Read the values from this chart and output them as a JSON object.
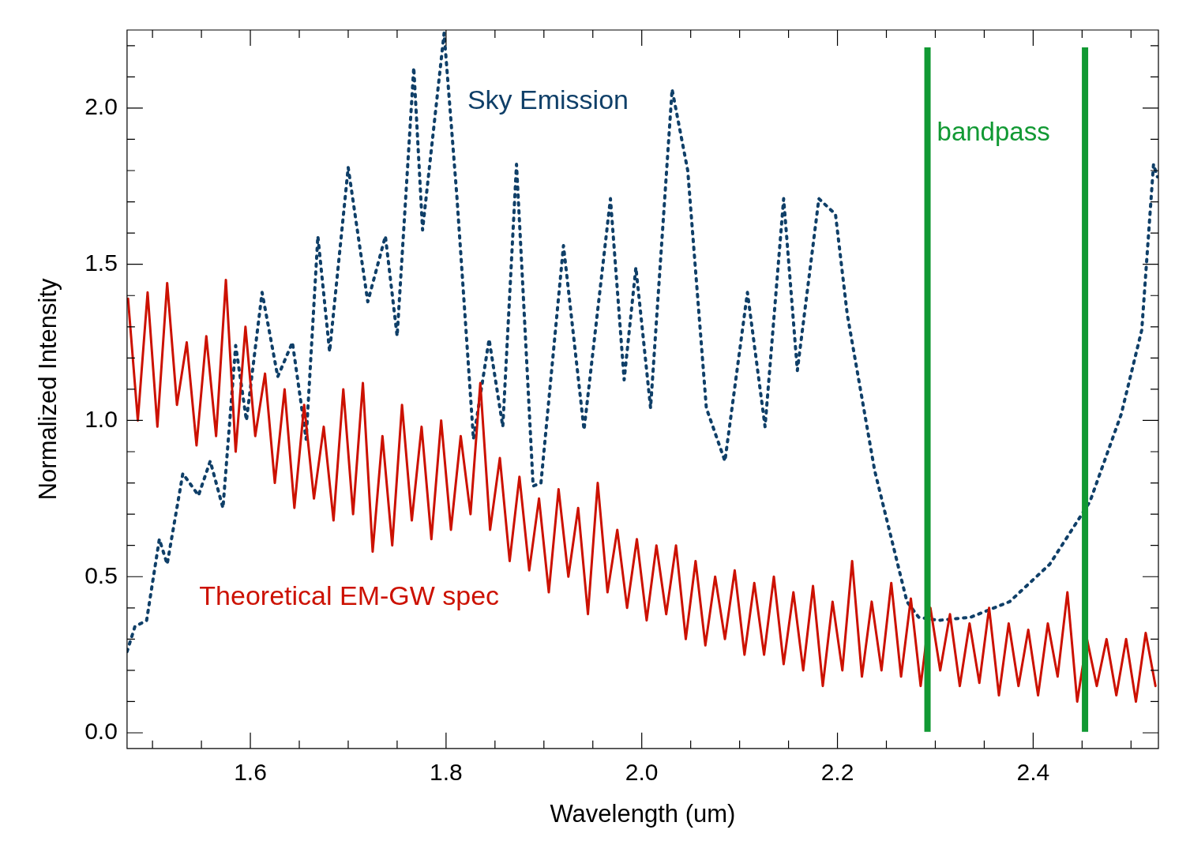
{
  "chart_data": {
    "type": "line",
    "xlabel": "Wavelength (um)",
    "ylabel": "Normalized Intensity",
    "xlim": [
      1.474,
      2.528
    ],
    "ylim": [
      -0.05,
      2.25
    ],
    "xticks": [
      {
        "value": 1.5,
        "label": null
      },
      {
        "value": 1.55,
        "label": null
      },
      1.6,
      {
        "value": 1.65,
        "label": null
      },
      {
        "value": 1.7,
        "label": null
      },
      {
        "value": 1.75,
        "label": null
      },
      1.8,
      {
        "value": 1.85,
        "label": null
      },
      {
        "value": 1.9,
        "label": null
      },
      {
        "value": 1.95,
        "label": null
      },
      {
        "value": 2.0,
        "label": "2.0"
      },
      {
        "value": 2.05,
        "label": null
      },
      {
        "value": 2.1,
        "label": null
      },
      {
        "value": 2.15,
        "label": null
      },
      2.2,
      {
        "value": 2.25,
        "label": null
      },
      {
        "value": 2.3,
        "label": null
      },
      {
        "value": 2.35,
        "label": null
      },
      2.4,
      {
        "value": 2.45,
        "label": null
      },
      {
        "value": 2.5,
        "label": null
      }
    ],
    "yticks": [
      {
        "value": 0,
        "label": "0.0"
      },
      {
        "value": 0.1,
        "label": null
      },
      {
        "value": 0.2,
        "label": null
      },
      {
        "value": 0.3,
        "label": null
      },
      {
        "value": 0.4,
        "label": null
      },
      0.5,
      {
        "value": 0.6,
        "label": null
      },
      {
        "value": 0.7,
        "label": null
      },
      {
        "value": 0.8,
        "label": null
      },
      {
        "value": 0.9,
        "label": null
      },
      {
        "value": 1,
        "label": "1.0"
      },
      {
        "value": 1.1,
        "label": null
      },
      {
        "value": 1.2,
        "label": null
      },
      {
        "value": 1.3,
        "label": null
      },
      {
        "value": 1.4,
        "label": null
      },
      1.5,
      {
        "value": 1.6,
        "label": null
      },
      {
        "value": 1.7,
        "label": null
      },
      {
        "value": 1.8,
        "label": null
      },
      {
        "value": 1.9,
        "label": null
      },
      {
        "value": 2,
        "label": "2.0"
      },
      {
        "value": 2.1,
        "label": null
      },
      {
        "value": 2.2,
        "label": null
      }
    ],
    "grid": false,
    "legend": false,
    "marker": "none",
    "series": [
      {
        "name": "Sky Emission",
        "color": "#0f3f68",
        "line_style": "dotted",
        "x": [
          1.474,
          1.482,
          1.494,
          1.507,
          1.515,
          1.531,
          1.547,
          1.559,
          1.572,
          1.585,
          1.596,
          1.612,
          1.628,
          1.643,
          1.657,
          1.669,
          1.681,
          1.7,
          1.72,
          1.738,
          1.75,
          1.767,
          1.776,
          1.798,
          1.811,
          1.828,
          1.844,
          1.858,
          1.872,
          1.889,
          1.897,
          1.92,
          1.941,
          1.968,
          1.982,
          1.994,
          2.009,
          2.031,
          2.047,
          2.066,
          2.085,
          2.108,
          2.126,
          2.145,
          2.159,
          2.181,
          2.198,
          2.21,
          2.238,
          2.271,
          2.283,
          2.303,
          2.336,
          2.376,
          2.417,
          2.458,
          2.49,
          2.511,
          2.523,
          2.527
        ],
        "values": [
          0.26,
          0.34,
          0.36,
          0.62,
          0.54,
          0.83,
          0.76,
          0.87,
          0.72,
          1.24,
          1.0,
          1.41,
          1.14,
          1.25,
          0.94,
          1.59,
          1.22,
          1.81,
          1.38,
          1.59,
          1.27,
          2.13,
          1.61,
          2.24,
          1.72,
          0.94,
          1.26,
          0.98,
          1.82,
          0.79,
          0.8,
          1.56,
          0.97,
          1.71,
          1.13,
          1.49,
          1.04,
          2.06,
          1.8,
          1.04,
          0.87,
          1.41,
          0.98,
          1.71,
          1.16,
          1.71,
          1.66,
          1.34,
          0.84,
          0.42,
          0.37,
          0.36,
          0.37,
          0.42,
          0.54,
          0.74,
          1.02,
          1.29,
          1.82,
          1.78
        ]
      },
      {
        "name": "Theoretical EM-GW spec",
        "color": "#cc1100",
        "line_style": "solid",
        "x": [
          1.475,
          1.485,
          1.495,
          1.505,
          1.515,
          1.525,
          1.535,
          1.545,
          1.555,
          1.565,
          1.575,
          1.585,
          1.595,
          1.605,
          1.615,
          1.625,
          1.635,
          1.645,
          1.655,
          1.665,
          1.675,
          1.685,
          1.695,
          1.705,
          1.715,
          1.725,
          1.735,
          1.745,
          1.755,
          1.765,
          1.775,
          1.785,
          1.795,
          1.805,
          1.815,
          1.825,
          1.835,
          1.845,
          1.855,
          1.865,
          1.875,
          1.885,
          1.895,
          1.905,
          1.915,
          1.925,
          1.935,
          1.945,
          1.955,
          1.965,
          1.975,
          1.985,
          1.995,
          2.005,
          2.015,
          2.025,
          2.035,
          2.045,
          2.055,
          2.065,
          2.075,
          2.085,
          2.095,
          2.105,
          2.115,
          2.125,
          2.135,
          2.145,
          2.155,
          2.165,
          2.175,
          2.185,
          2.195,
          2.205,
          2.215,
          2.225,
          2.235,
          2.245,
          2.255,
          2.265,
          2.275,
          2.285,
          2.295,
          2.305,
          2.315,
          2.325,
          2.335,
          2.345,
          2.355,
          2.365,
          2.375,
          2.385,
          2.395,
          2.405,
          2.415,
          2.425,
          2.435,
          2.445,
          2.455,
          2.465,
          2.475,
          2.485,
          2.495,
          2.505,
          2.515,
          2.525
        ],
        "values": [
          1.39,
          1.0,
          1.41,
          0.98,
          1.44,
          1.05,
          1.25,
          0.92,
          1.27,
          0.95,
          1.45,
          0.9,
          1.3,
          0.95,
          1.15,
          0.8,
          1.1,
          0.72,
          1.05,
          0.75,
          0.98,
          0.68,
          1.1,
          0.7,
          1.12,
          0.58,
          0.95,
          0.6,
          1.05,
          0.68,
          0.98,
          0.62,
          1.0,
          0.65,
          0.95,
          0.7,
          1.12,
          0.65,
          0.88,
          0.55,
          0.82,
          0.52,
          0.75,
          0.45,
          0.78,
          0.5,
          0.72,
          0.38,
          0.8,
          0.45,
          0.65,
          0.4,
          0.62,
          0.36,
          0.6,
          0.38,
          0.6,
          0.3,
          0.55,
          0.28,
          0.5,
          0.3,
          0.52,
          0.25,
          0.48,
          0.25,
          0.5,
          0.22,
          0.45,
          0.2,
          0.47,
          0.15,
          0.42,
          0.2,
          0.55,
          0.18,
          0.42,
          0.2,
          0.48,
          0.18,
          0.43,
          0.15,
          0.4,
          0.2,
          0.38,
          0.15,
          0.35,
          0.16,
          0.4,
          0.12,
          0.35,
          0.15,
          0.33,
          0.12,
          0.35,
          0.18,
          0.45,
          0.1,
          0.3,
          0.15,
          0.3,
          0.12,
          0.3,
          0.1,
          0.32,
          0.15
        ]
      }
    ],
    "ref_lines": [
      {
        "axis": "x",
        "value": 2.292,
        "color": "#119933"
      },
      {
        "axis": "x",
        "value": 2.453,
        "color": "#119933"
      }
    ],
    "annotations": [
      "bandpass"
    ]
  }
}
